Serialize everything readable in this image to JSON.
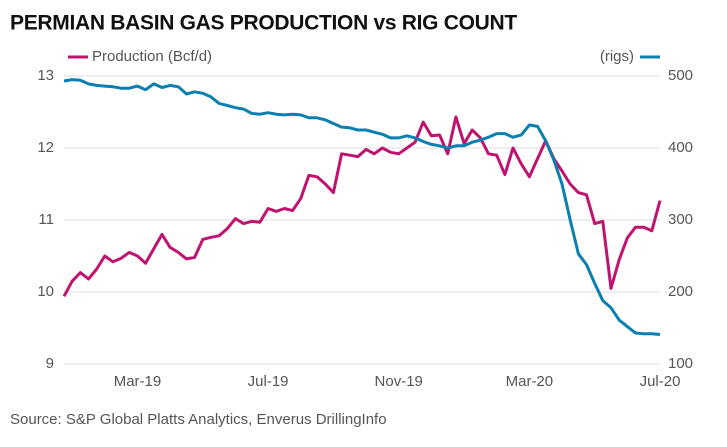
{
  "chart_data": {
    "type": "line",
    "title": "PERMIAN BASIN GAS PRODUCTION vs RIG COUNT",
    "source": "Source: S&P Global Platts Analytics, Enverus DrillingInfo",
    "categories": [
      null,
      null,
      null,
      null,
      null,
      null,
      null,
      null,
      null,
      "Mar-19",
      null,
      null,
      null,
      null,
      null,
      null,
      null,
      null,
      null,
      null,
      null,
      null,
      null,
      null,
      null,
      "Jul-19",
      null,
      null,
      null,
      null,
      null,
      null,
      null,
      null,
      null,
      null,
      null,
      null,
      null,
      null,
      null,
      "Nov-19",
      null,
      null,
      null,
      null,
      null,
      null,
      null,
      null,
      null,
      null,
      null,
      null,
      null,
      null,
      null,
      "Mar-20",
      null,
      null,
      null,
      null,
      null,
      null,
      null,
      null,
      null,
      null,
      null,
      null,
      null,
      null,
      null,
      "Jul-20"
    ],
    "series": [
      {
        "name": "Production (Bcf/d)",
        "color": "#c0136f",
        "axis": "y",
        "values": [
          9.94,
          10.15,
          10.27,
          10.18,
          10.32,
          10.5,
          10.42,
          10.47,
          10.55,
          10.5,
          10.4,
          10.6,
          10.8,
          10.62,
          10.55,
          10.46,
          10.48,
          10.73,
          10.76,
          10.78,
          10.88,
          11.02,
          10.95,
          10.98,
          10.97,
          11.16,
          11.12,
          11.16,
          11.13,
          11.3,
          11.62,
          11.6,
          11.5,
          11.38,
          11.92,
          11.9,
          11.88,
          11.98,
          11.92,
          12.0,
          11.94,
          11.92,
          12.0,
          12.08,
          12.36,
          12.17,
          12.18,
          11.92,
          12.43,
          12.06,
          12.25,
          12.14,
          11.92,
          11.9,
          11.63,
          12.0,
          11.78,
          11.6,
          11.85,
          12.1,
          11.85,
          11.68,
          11.5,
          11.38,
          11.35,
          10.95,
          10.98,
          10.05,
          10.45,
          10.75,
          10.9,
          10.9,
          10.85,
          11.27
        ]
      },
      {
        "name": "(rigs)",
        "color": "#0a7fb0",
        "axis": "y2",
        "values": [
          493,
          495,
          494,
          489,
          487,
          486,
          485,
          483,
          483,
          486,
          481,
          489,
          484,
          487,
          485,
          475,
          478,
          476,
          471,
          462,
          459,
          456,
          454,
          448,
          447,
          449,
          447,
          446,
          447,
          446,
          442,
          442,
          439,
          434,
          429,
          428,
          425,
          425,
          422,
          419,
          414,
          414,
          417,
          414,
          409,
          405,
          403,
          400,
          403,
          403,
          408,
          411,
          415,
          420,
          420,
          415,
          418,
          432,
          430,
          410,
          383,
          350,
          300,
          253,
          238,
          212,
          188,
          178,
          161,
          152,
          143,
          142,
          142,
          141
        ]
      }
    ],
    "ylim": [
      9,
      13
    ],
    "yticks": [
      9,
      10,
      11,
      12,
      13
    ],
    "y2lim": [
      100,
      500
    ],
    "y2ticks": [
      100,
      200,
      300,
      400,
      500
    ],
    "grid": true
  }
}
